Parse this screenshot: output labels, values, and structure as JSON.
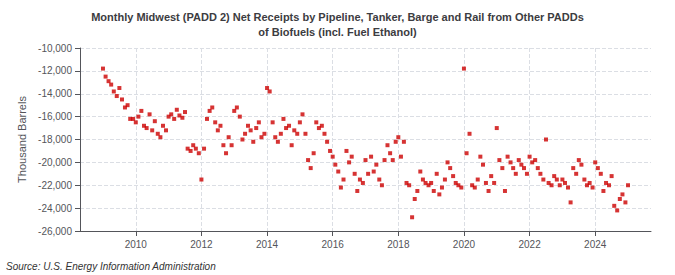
{
  "chart_data": {
    "type": "scatter",
    "title": "Monthly Midwest (PADD 2) Net Receipts by Pipeline, Tanker, Barge and Rail from Other PADDs\nof Biofuels (incl. Fuel Ethanol)",
    "ylabel": "Thousand Barrels",
    "source": "Source: U.S. Energy Information Administration",
    "color": "#cc0000",
    "marker": "square",
    "grid": true,
    "xlim": [
      2008.3,
      2025.7
    ],
    "xticks": [
      2010,
      2012,
      2014,
      2016,
      2018,
      2020,
      2022,
      2024
    ],
    "ylim": [
      -26000,
      -10000
    ],
    "yticks": [
      {
        "value": -26000,
        "label": "-26,000"
      },
      {
        "value": -24000,
        "label": "-24,000"
      },
      {
        "value": -22000,
        "label": "-22,000"
      },
      {
        "value": -20000,
        "label": "-20,000"
      },
      {
        "value": -18000,
        "label": "-18,000"
      },
      {
        "value": -16000,
        "label": "-16,000"
      },
      {
        "value": -14000,
        "label": "-14,000"
      },
      {
        "value": -12000,
        "label": "-12,000"
      },
      {
        "value": -10000,
        "label": "-10,000"
      }
    ],
    "x": [
      2009.0,
      2009.08,
      2009.17,
      2009.25,
      2009.33,
      2009.42,
      2009.5,
      2009.58,
      2009.67,
      2009.75,
      2009.83,
      2009.92,
      2010.0,
      2010.08,
      2010.17,
      2010.25,
      2010.33,
      2010.42,
      2010.5,
      2010.58,
      2010.67,
      2010.75,
      2010.83,
      2010.92,
      2011.0,
      2011.08,
      2011.17,
      2011.25,
      2011.33,
      2011.42,
      2011.5,
      2011.58,
      2011.67,
      2011.75,
      2011.83,
      2011.92,
      2012.0,
      2012.08,
      2012.17,
      2012.25,
      2012.33,
      2012.42,
      2012.5,
      2012.58,
      2012.67,
      2012.75,
      2012.83,
      2012.92,
      2013.0,
      2013.08,
      2013.17,
      2013.25,
      2013.33,
      2013.42,
      2013.5,
      2013.58,
      2013.67,
      2013.75,
      2013.83,
      2013.92,
      2014.0,
      2014.08,
      2014.17,
      2014.25,
      2014.33,
      2014.42,
      2014.5,
      2014.58,
      2014.67,
      2014.75,
      2014.83,
      2014.92,
      2015.0,
      2015.08,
      2015.17,
      2015.25,
      2015.33,
      2015.42,
      2015.5,
      2015.58,
      2015.67,
      2015.75,
      2015.83,
      2015.92,
      2016.0,
      2016.08,
      2016.17,
      2016.25,
      2016.33,
      2016.42,
      2016.5,
      2016.58,
      2016.67,
      2016.75,
      2016.83,
      2016.92,
      2017.0,
      2017.08,
      2017.17,
      2017.25,
      2017.33,
      2017.42,
      2017.5,
      2017.58,
      2017.67,
      2017.75,
      2017.83,
      2017.92,
      2018.0,
      2018.08,
      2018.17,
      2018.25,
      2018.33,
      2018.42,
      2018.5,
      2018.58,
      2018.67,
      2018.75,
      2018.83,
      2018.92,
      2019.0,
      2019.08,
      2019.17,
      2019.25,
      2019.33,
      2019.42,
      2019.5,
      2019.58,
      2019.67,
      2019.75,
      2019.83,
      2019.92,
      2020.0,
      2020.08,
      2020.17,
      2020.25,
      2020.33,
      2020.42,
      2020.5,
      2020.58,
      2020.67,
      2020.75,
      2020.83,
      2020.92,
      2021.0,
      2021.08,
      2021.17,
      2021.25,
      2021.33,
      2021.42,
      2021.5,
      2021.58,
      2021.67,
      2021.75,
      2021.83,
      2021.92,
      2022.0,
      2022.08,
      2022.17,
      2022.25,
      2022.33,
      2022.42,
      2022.5,
      2022.58,
      2022.67,
      2022.75,
      2022.83,
      2022.92,
      2023.0,
      2023.08,
      2023.17,
      2023.25,
      2023.33,
      2023.42,
      2023.5,
      2023.58,
      2023.67,
      2023.75,
      2023.83,
      2023.92,
      2024.0,
      2024.08,
      2024.17,
      2024.25,
      2024.33,
      2024.42,
      2024.5,
      2024.58,
      2024.67,
      2024.75,
      2024.83,
      2024.92,
      2025.0
    ],
    "values": [
      -11800,
      -12500,
      -12900,
      -13200,
      -13800,
      -14200,
      -13500,
      -14500,
      -15200,
      -15000,
      -16200,
      -16200,
      -16500,
      -16000,
      -15500,
      -16800,
      -17000,
      -15800,
      -17200,
      -16400,
      -17500,
      -17800,
      -16800,
      -17200,
      -16000,
      -15800,
      -16200,
      -15400,
      -15900,
      -16100,
      -15600,
      -18800,
      -19000,
      -18500,
      -18800,
      -19200,
      -21500,
      -18800,
      -16200,
      -15500,
      -15200,
      -16500,
      -17200,
      -16800,
      -18500,
      -19200,
      -17800,
      -18500,
      -15500,
      -15200,
      -16000,
      -18000,
      -17500,
      -16800,
      -17200,
      -18200,
      -17000,
      -16500,
      -17800,
      -17500,
      -13500,
      -13800,
      -16500,
      -17800,
      -18200,
      -17500,
      -16200,
      -17000,
      -16800,
      -18500,
      -17200,
      -17500,
      -16500,
      -15800,
      -17500,
      -19800,
      -20500,
      -19200,
      -16500,
      -17000,
      -16800,
      -17500,
      -18200,
      -19000,
      -19500,
      -20200,
      -20800,
      -22200,
      -21500,
      -19000,
      -20000,
      -19500,
      -21000,
      -22500,
      -21500,
      -21800,
      -19800,
      -21000,
      -19500,
      -20800,
      -20200,
      -21500,
      -22000,
      -19800,
      -18500,
      -19200,
      -19800,
      -18200,
      -17800,
      -19500,
      -18200,
      -21800,
      -22000,
      -24800,
      -23200,
      -22500,
      -20800,
      -21500,
      -21800,
      -22000,
      -21800,
      -22500,
      -21000,
      -22800,
      -22200,
      -21500,
      -20000,
      -20500,
      -21200,
      -21800,
      -22000,
      -22200,
      -11800,
      -19200,
      -17500,
      -22000,
      -22200,
      -21500,
      -19500,
      -20200,
      -21800,
      -22500,
      -21200,
      -21800,
      -17000,
      -19800,
      -20500,
      -22500,
      -19500,
      -20000,
      -20500,
      -21000,
      -19800,
      -20200,
      -20500,
      -21000,
      -19500,
      -20000,
      -19800,
      -20500,
      -21000,
      -21500,
      -18000,
      -21800,
      -22000,
      -21200,
      -21500,
      -22000,
      -21500,
      -21800,
      -22200,
      -23500,
      -20500,
      -21000,
      -19800,
      -20200,
      -21500,
      -22000,
      -21800,
      -22200,
      -20000,
      -20500,
      -21000,
      -22500,
      -21800,
      -22000,
      -21200,
      -23800,
      -24200,
      -23200,
      -22800,
      -23500,
      -22000
    ]
  }
}
